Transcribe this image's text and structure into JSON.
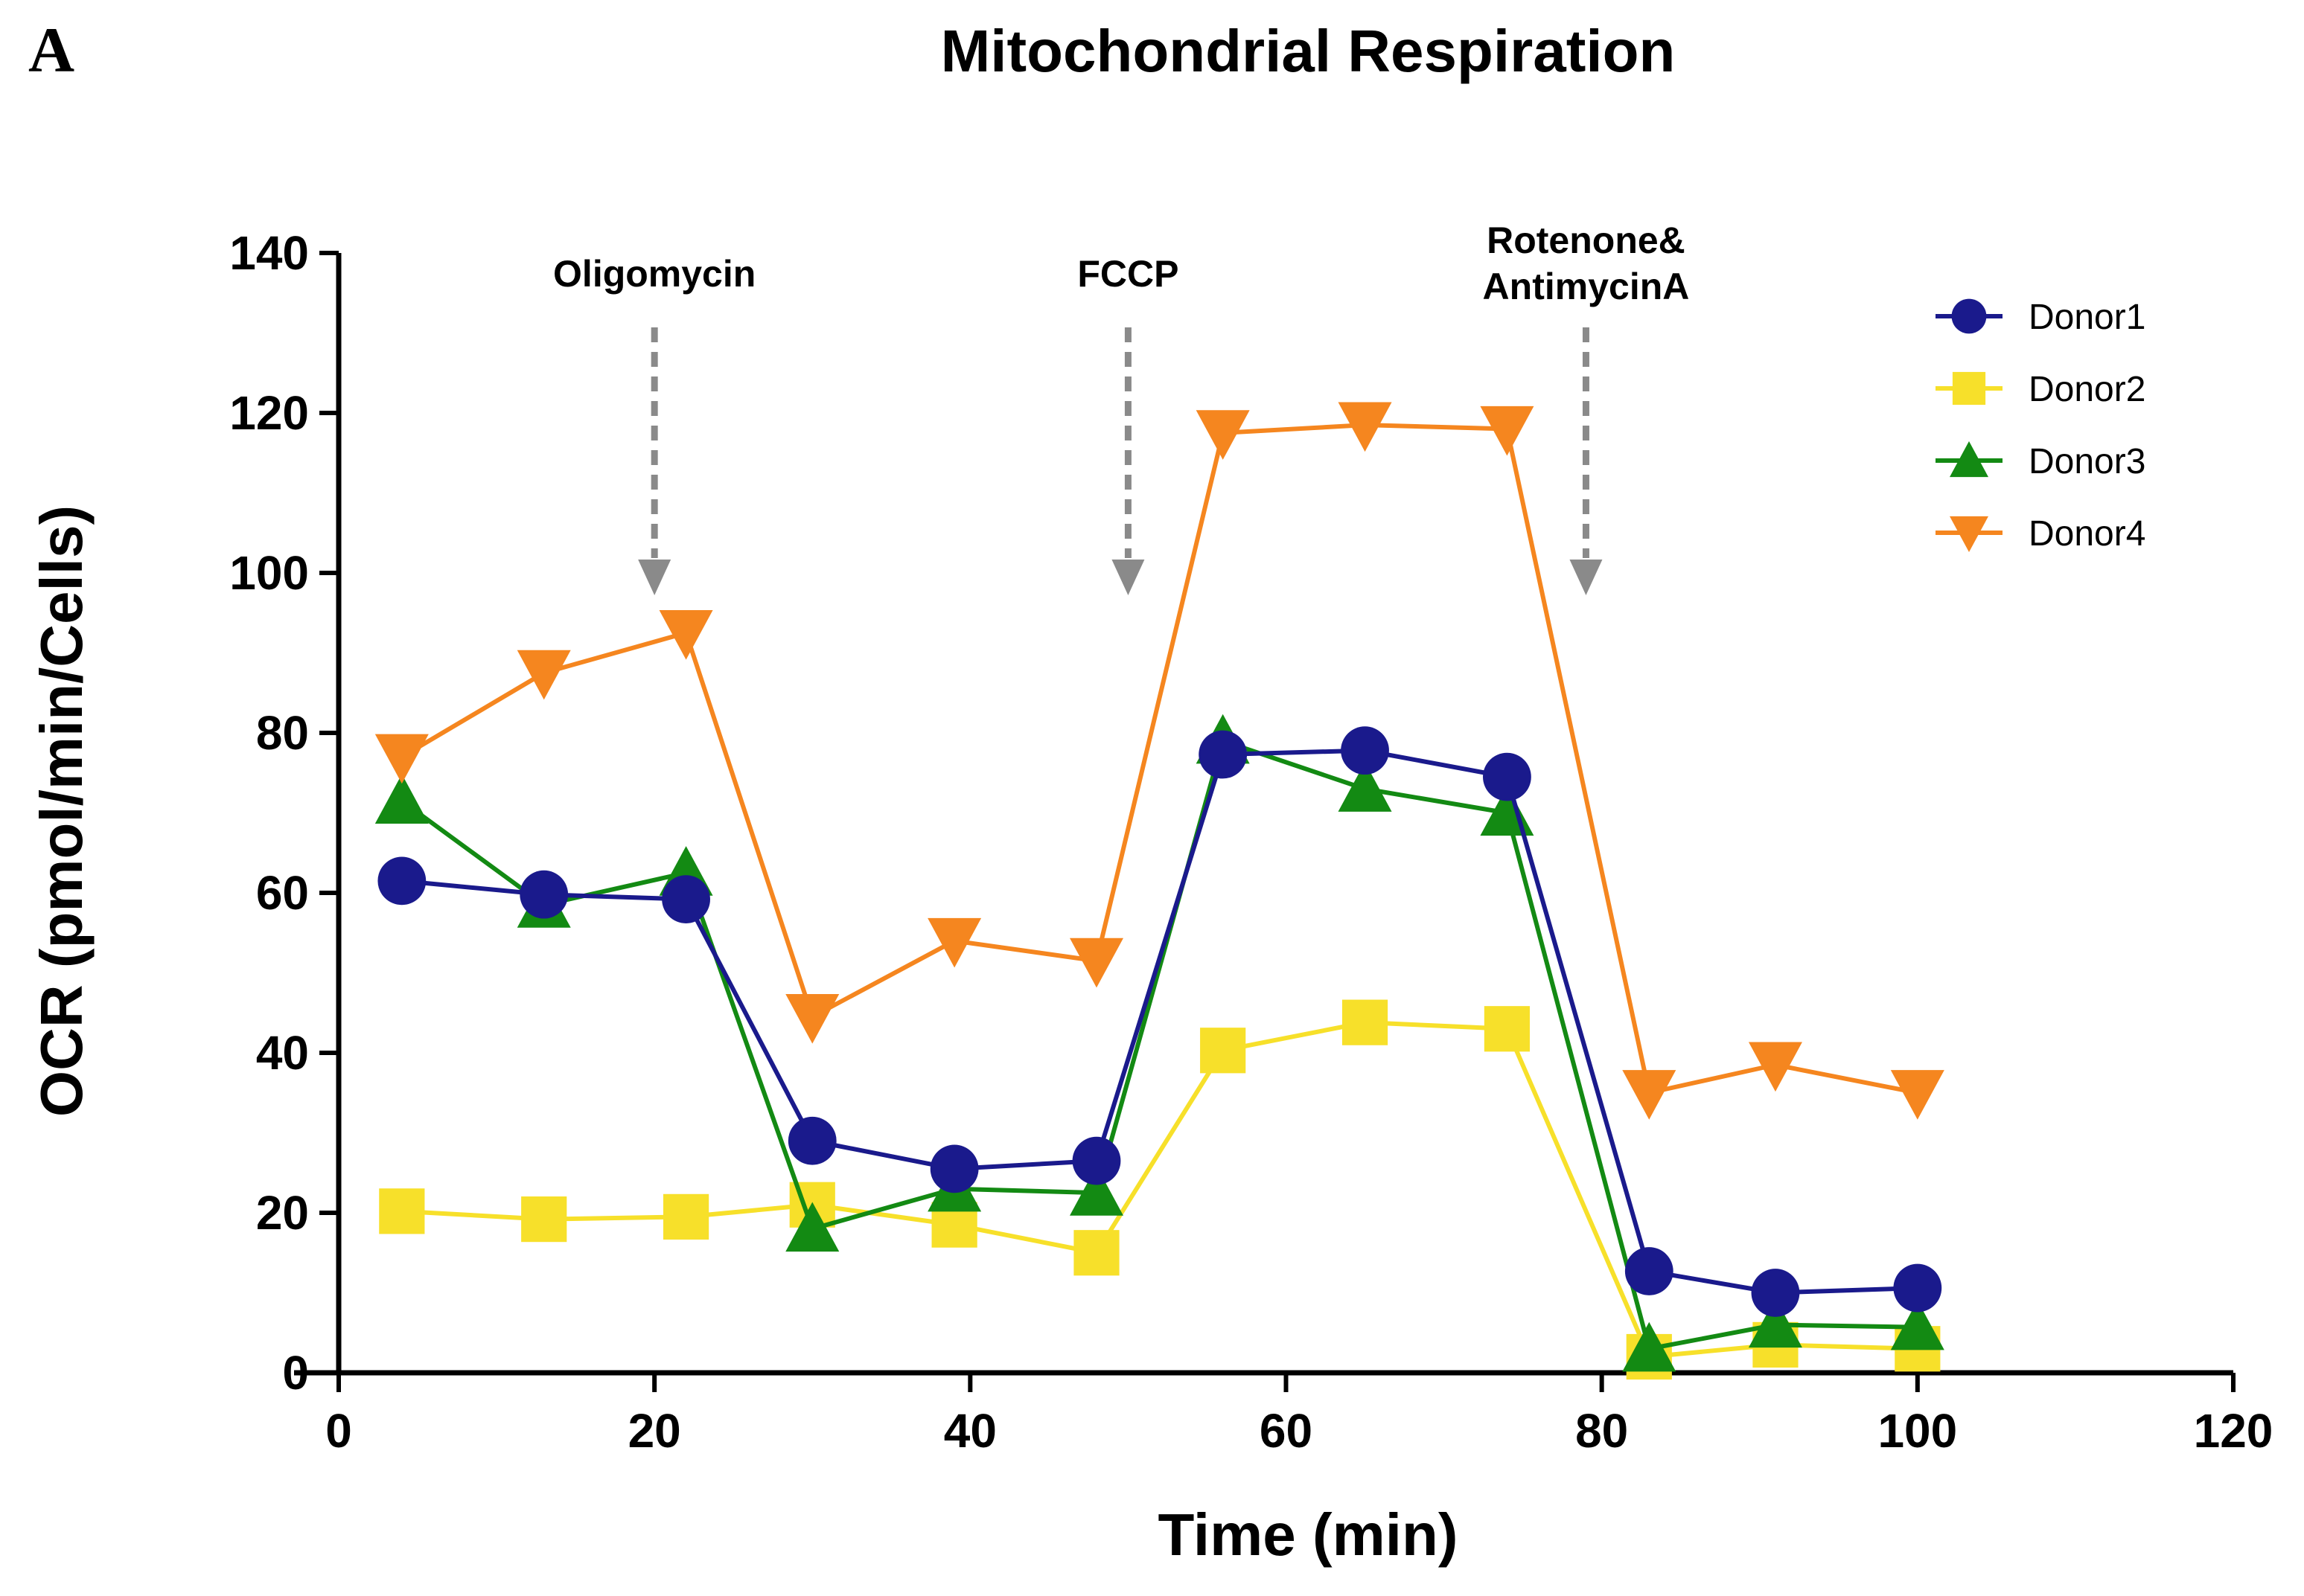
{
  "panel_label": "A",
  "chart_data": {
    "type": "line",
    "title": "Mitochondrial Respiration",
    "xlabel": "Time (min)",
    "ylabel": "OCR (pmol/min/Cells)",
    "xlim": [
      0,
      120
    ],
    "ylim": [
      0,
      140
    ],
    "x_ticks": [
      0,
      20,
      40,
      60,
      80,
      100,
      120
    ],
    "y_ticks": [
      0,
      20,
      40,
      60,
      80,
      100,
      120,
      140
    ],
    "grid": false,
    "legend_position": "top-right",
    "annotations": [
      {
        "lines": [
          "Oligomycin"
        ],
        "x": 20
      },
      {
        "lines": [
          "FCCP"
        ],
        "x": 50
      },
      {
        "lines": [
          "Rotenone&",
          "AntimycinA"
        ],
        "x": 79
      }
    ],
    "series": [
      {
        "name": "Donor1",
        "color": "#1a1a8c",
        "marker": "circle",
        "x": [
          4,
          13,
          22,
          30,
          39,
          48,
          56,
          65,
          74,
          83,
          91,
          100
        ],
        "values": [
          61.5,
          59.8,
          59.2,
          29,
          25.5,
          26.5,
          77.3,
          77.8,
          74.5,
          12.7,
          10,
          10.6
        ]
      },
      {
        "name": "Donor2",
        "color": "#f7e02a",
        "marker": "square",
        "x": [
          4,
          13,
          22,
          30,
          39,
          48,
          56,
          65,
          74,
          83,
          91,
          100
        ],
        "values": [
          20.2,
          19.2,
          19.5,
          21,
          18.5,
          15,
          40.3,
          43.8,
          43,
          2,
          3.5,
          3
        ]
      },
      {
        "name": "Donor3",
        "color": "#138a13",
        "marker": "triangle-up",
        "x": [
          4,
          13,
          22,
          30,
          39,
          48,
          56,
          65,
          74,
          83,
          91,
          100
        ],
        "values": [
          71.5,
          58.5,
          62.5,
          18,
          23,
          22.5,
          79,
          73,
          70,
          3,
          6,
          5.7
        ]
      },
      {
        "name": "Donor4",
        "color": "#f5861f",
        "marker": "triangle-down",
        "x": [
          4,
          13,
          22,
          30,
          39,
          48,
          56,
          65,
          74,
          83,
          91,
          100
        ],
        "values": [
          77,
          87.5,
          92.5,
          44.5,
          54,
          51.5,
          117.5,
          118.5,
          118,
          35,
          38.5,
          35
        ]
      }
    ]
  }
}
